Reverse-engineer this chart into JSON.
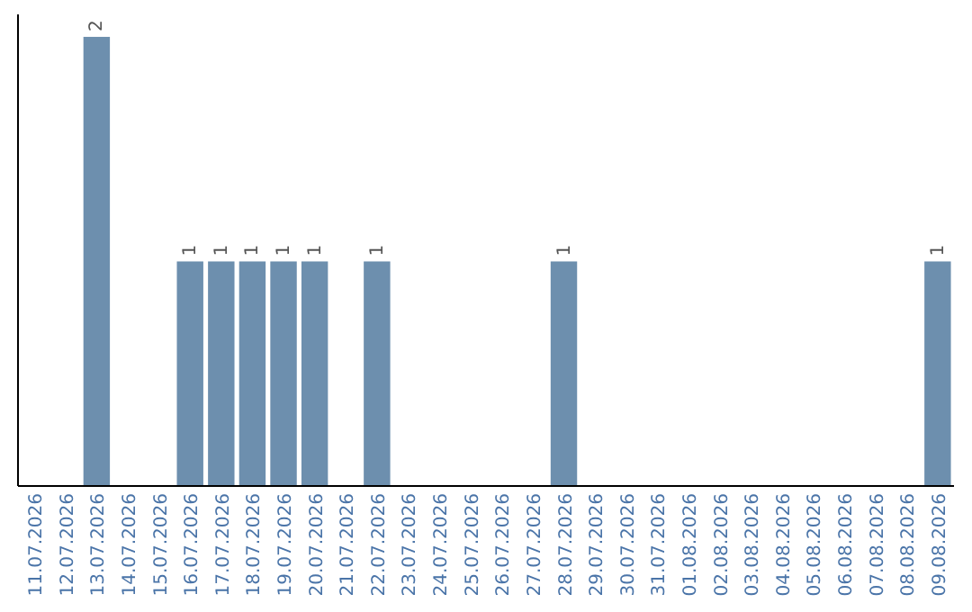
{
  "chart_data": {
    "type": "bar",
    "categories": [
      "11.07.2026",
      "12.07.2026",
      "13.07.2026",
      "14.07.2026",
      "15.07.2026",
      "16.07.2026",
      "17.07.2026",
      "18.07.2026",
      "19.07.2026",
      "20.07.2026",
      "21.07.2026",
      "22.07.2026",
      "23.07.2026",
      "24.07.2026",
      "25.07.2026",
      "26.07.2026",
      "27.07.2026",
      "28.07.2026",
      "29.07.2026",
      "30.07.2026",
      "31.07.2026",
      "01.08.2026",
      "02.08.2026",
      "03.08.2026",
      "04.08.2026",
      "05.08.2026",
      "06.08.2026",
      "07.08.2026",
      "08.08.2026",
      "09.08.2026"
    ],
    "values": [
      0,
      0,
      2,
      0,
      0,
      1,
      1,
      1,
      1,
      1,
      0,
      1,
      0,
      0,
      0,
      0,
      0,
      1,
      0,
      0,
      0,
      0,
      0,
      0,
      0,
      0,
      0,
      0,
      0,
      1
    ],
    "value_labels": [
      null,
      null,
      "2",
      null,
      null,
      "1",
      "1",
      "1",
      "1",
      "1",
      null,
      "1",
      null,
      null,
      null,
      null,
      null,
      "1",
      null,
      null,
      null,
      null,
      null,
      null,
      null,
      null,
      null,
      null,
      null,
      "1"
    ],
    "color": "#6d8fae",
    "tick_labels": "x"
  }
}
